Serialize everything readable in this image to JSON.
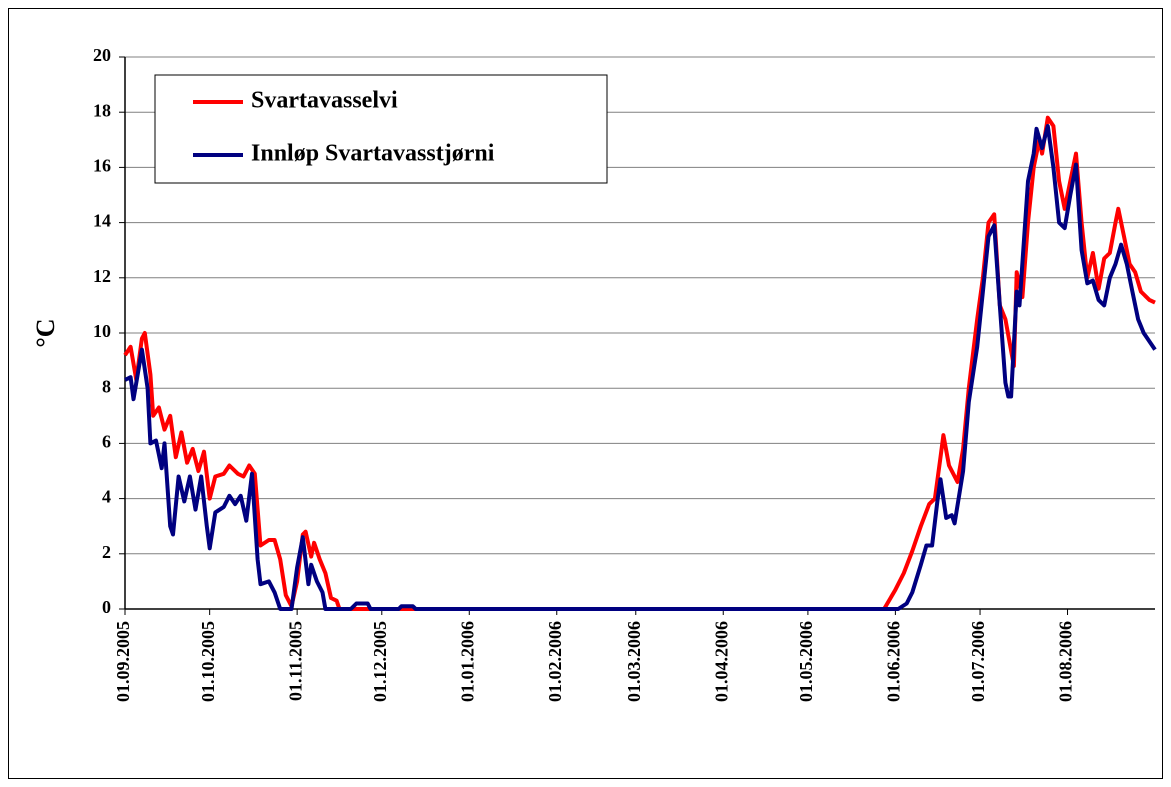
{
  "chart_data": {
    "type": "line",
    "ylabel": "°C",
    "xlim": [
      "01.09.2005",
      "01.09.2006"
    ],
    "xticks": [
      "01.09.2005",
      "01.10.2005",
      "01.11.2005",
      "01.12.2005",
      "01.01.2006",
      "01.02.2006",
      "01.03.2006",
      "01.04.2006",
      "01.05.2006",
      "01.06.2006",
      "01.07.2006",
      "01.08.2006"
    ],
    "ylim": [
      0,
      20
    ],
    "yticks": [
      0,
      2,
      4,
      6,
      8,
      10,
      12,
      14,
      16,
      18,
      20
    ],
    "grid": true,
    "legend": "upper left",
    "series": [
      {
        "name": "Svartavasselvi",
        "color": "#ff0000",
        "x": [
          "01.09.2005",
          "03.09.2005",
          "05.09.2005",
          "07.09.2005",
          "08.09.2005",
          "10.09.2005",
          "11.09.2005",
          "13.09.2005",
          "15.09.2005",
          "17.09.2005",
          "19.09.2005",
          "21.09.2005",
          "23.09.2005",
          "25.09.2005",
          "27.09.2005",
          "29.09.2005",
          "01.10.2005",
          "03.10.2005",
          "06.10.2005",
          "08.10.2005",
          "11.10.2005",
          "13.10.2005",
          "15.10.2005",
          "17.10.2005",
          "19.10.2005",
          "22.10.2005",
          "24.10.2005",
          "26.10.2005",
          "28.10.2005",
          "30.10.2005",
          "01.11.2005",
          "03.11.2005",
          "04.11.2005",
          "06.11.2005",
          "07.11.2005",
          "09.11.2005",
          "11.11.2005",
          "13.11.2005",
          "15.11.2005",
          "16.11.2005",
          "28.05.2006",
          "01.06.2006",
          "04.06.2006",
          "07.06.2006",
          "10.06.2006",
          "13.06.2006",
          "15.06.2006",
          "17.06.2006",
          "18.06.2006",
          "20.06.2006",
          "23.06.2006",
          "25.06.2006",
          "27.06.2006",
          "30.06.2006",
          "02.07.2006",
          "04.07.2006",
          "06.07.2006",
          "08.07.2006",
          "10.07.2006",
          "13.07.2006",
          "14.07.2006",
          "16.07.2006",
          "18.07.2006",
          "20.07.2006",
          "22.07.2006",
          "23.07.2006",
          "25.07.2006",
          "27.07.2006",
          "29.07.2006",
          "31.07.2006",
          "02.08.2006",
          "04.08.2006",
          "06.08.2006",
          "08.08.2006",
          "10.08.2006",
          "12.08.2006",
          "14.08.2006",
          "16.08.2006",
          "18.08.2006",
          "19.08.2006",
          "21.08.2006",
          "23.08.2006",
          "25.08.2006",
          "27.08.2006",
          "30.08.2006",
          "01.09.2006"
        ],
        "values": [
          9.2,
          9.5,
          8.3,
          9.8,
          10.0,
          8.5,
          7.0,
          7.3,
          6.5,
          7.0,
          5.5,
          6.4,
          5.3,
          5.8,
          5.0,
          5.7,
          4.0,
          4.8,
          4.9,
          5.2,
          4.9,
          4.8,
          5.2,
          4.9,
          2.3,
          2.5,
          2.5,
          1.8,
          0.5,
          0.1,
          1.0,
          2.7,
          2.8,
          1.9,
          2.4,
          1.8,
          1.3,
          0.4,
          0.3,
          0,
          0,
          0.7,
          1.3,
          2.1,
          3.0,
          3.8,
          4.0,
          5.5,
          6.3,
          5.2,
          4.6,
          5.8,
          8.0,
          10.5,
          12.0,
          14.0,
          14.3,
          11.0,
          10.5,
          8.8,
          12.2,
          11.3,
          14.0,
          16.0,
          17.0,
          16.5,
          17.8,
          17.5,
          15.5,
          14.5,
          15.5,
          16.5,
          14.0,
          12.0,
          12.9,
          11.6,
          12.7,
          12.9,
          14.0,
          14.5,
          13.5,
          12.5,
          12.2,
          11.5,
          11.2,
          11.1
        ]
      },
      {
        "name": "Innløp Svartavasstjørni",
        "color": "#000080",
        "x": [
          "01.09.2005",
          "03.09.2005",
          "04.09.2005",
          "06.09.2005",
          "07.09.2005",
          "09.09.2005",
          "10.09.2005",
          "12.09.2005",
          "14.09.2005",
          "15.09.2005",
          "17.09.2005",
          "18.09.2005",
          "20.09.2005",
          "22.09.2005",
          "24.09.2005",
          "26.09.2005",
          "28.09.2005",
          "30.09.2005",
          "01.10.2005",
          "03.10.2005",
          "06.10.2005",
          "08.10.2005",
          "10.10.2005",
          "12.10.2005",
          "14.10.2005",
          "16.10.2005",
          "18.10.2005",
          "19.10.2005",
          "22.10.2005",
          "24.10.2005",
          "26.10.2005",
          "30.10.2005",
          "01.11.2005",
          "03.11.2005",
          "05.11.2005",
          "06.11.2005",
          "08.11.2005",
          "10.11.2005",
          "11.11.2005",
          "20.11.2005",
          "22.11.2005",
          "26.11.2005",
          "27.11.2005",
          "07.12.2005",
          "08.12.2005",
          "12.12.2005",
          "13.12.2005",
          "02.06.2006",
          "05.06.2006",
          "07.06.2006",
          "10.06.2006",
          "12.06.2006",
          "14.06.2006",
          "16.06.2006",
          "17.06.2006",
          "19.06.2006",
          "21.06.2006",
          "22.06.2006",
          "25.06.2006",
          "27.06.2006",
          "30.06.2006",
          "02.07.2006",
          "04.07.2006",
          "06.07.2006",
          "08.07.2006",
          "10.07.2006",
          "11.07.2006",
          "12.07.2006",
          "14.07.2006",
          "15.07.2006",
          "18.07.2006",
          "20.07.2006",
          "21.07.2006",
          "23.07.2006",
          "25.07.2006",
          "27.07.2006",
          "29.07.2006",
          "31.07.2006",
          "02.08.2006",
          "04.08.2006",
          "06.08.2006",
          "08.08.2006",
          "10.08.2006",
          "12.08.2006",
          "14.08.2006",
          "16.08.2006",
          "18.08.2006",
          "20.08.2006",
          "22.08.2006",
          "24.08.2006",
          "26.08.2006",
          "28.08.2006",
          "01.09.2006"
        ],
        "values": [
          8.3,
          8.4,
          7.6,
          8.8,
          9.4,
          8.0,
          6.0,
          6.1,
          5.1,
          6.0,
          3.0,
          2.7,
          4.8,
          3.9,
          4.8,
          3.6,
          4.8,
          3.0,
          2.2,
          3.5,
          3.7,
          4.1,
          3.8,
          4.1,
          3.2,
          4.9,
          1.8,
          0.9,
          1.0,
          0.6,
          0,
          0,
          1.5,
          2.6,
          0.9,
          1.6,
          1.0,
          0.6,
          0,
          0,
          0.2,
          0.2,
          0,
          0,
          0.1,
          0.1,
          0,
          0,
          0.2,
          0.6,
          1.6,
          2.3,
          2.3,
          4.0,
          4.7,
          3.3,
          3.4,
          3.1,
          5.0,
          7.5,
          9.5,
          11.5,
          13.5,
          13.9,
          11.0,
          8.2,
          7.7,
          7.7,
          11.5,
          11.0,
          15.5,
          16.5,
          17.4,
          16.7,
          17.5,
          16.0,
          14.0,
          13.8,
          15.0,
          16.1,
          13.0,
          11.8,
          11.9,
          11.2,
          11.0,
          12.0,
          12.5,
          13.2,
          12.5,
          11.5,
          10.5,
          10.0,
          9.4
        ]
      }
    ]
  }
}
